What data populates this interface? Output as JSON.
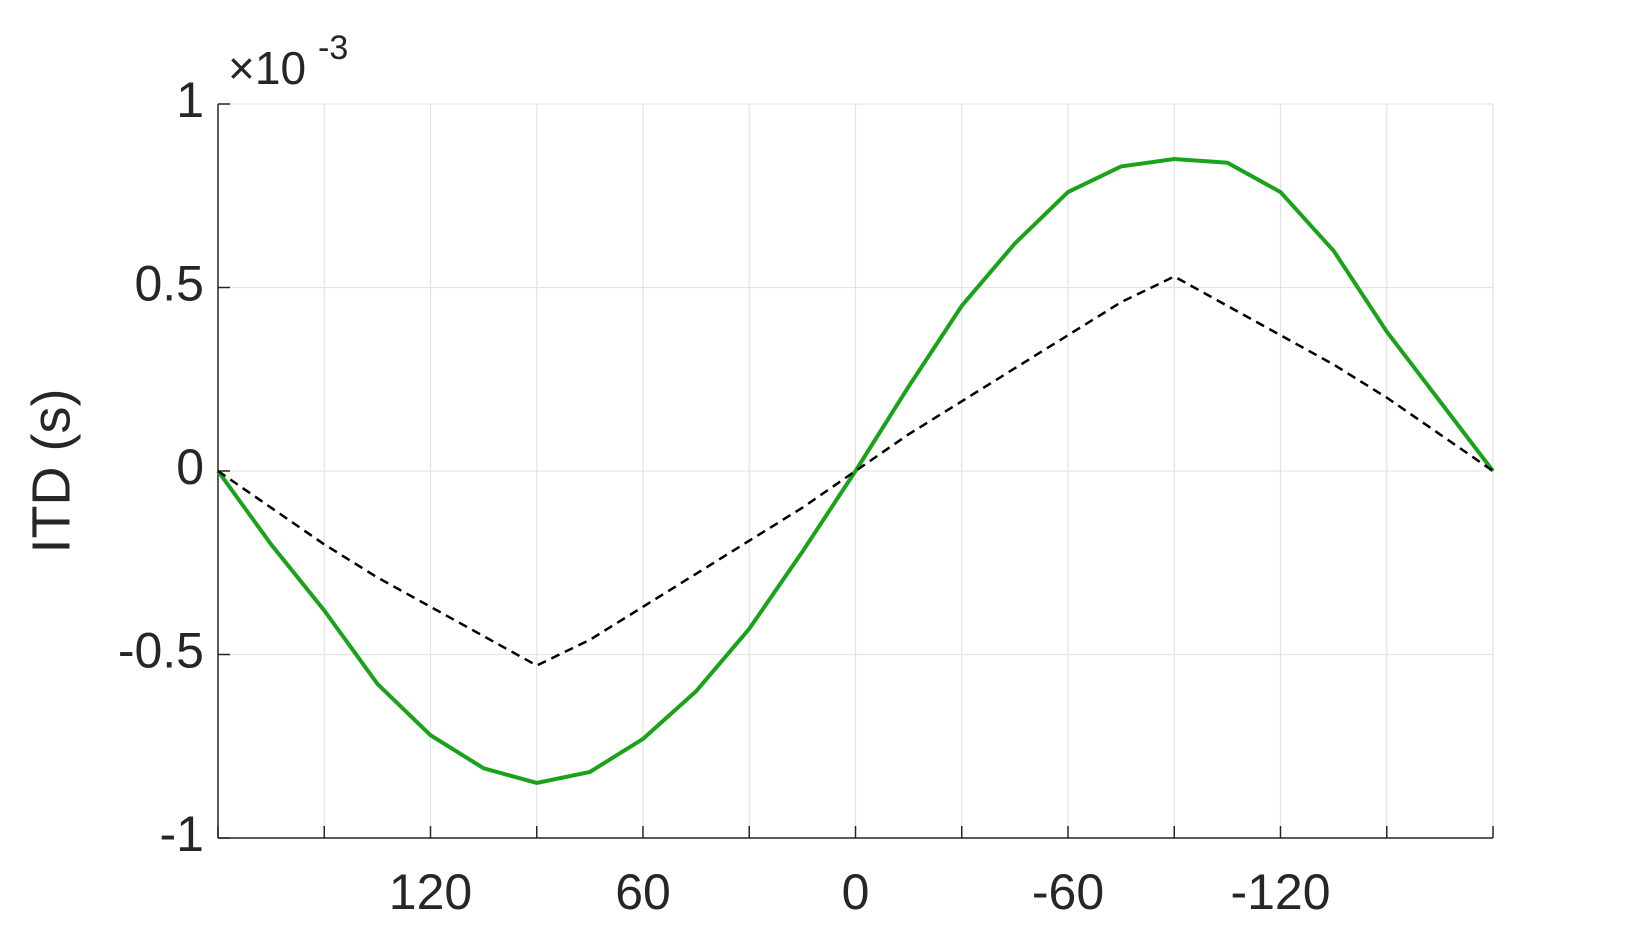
{
  "chart_data": {
    "type": "line",
    "y_label": "ITD (s)",
    "y_exponent": {
      "base": "×10",
      "power": "-3"
    },
    "x": [
      180,
      165,
      150,
      135,
      120,
      105,
      90,
      75,
      60,
      45,
      30,
      15,
      0,
      -15,
      -30,
      -45,
      -60,
      -75,
      -90,
      -105,
      -120,
      -135,
      -150,
      -165,
      -180
    ],
    "series": [
      {
        "color": "#1aa31a",
        "style": "solid",
        "values": [
          0,
          -0.0002,
          -0.00038,
          -0.00058,
          -0.00072,
          -0.00081,
          -0.00085,
          -0.00082,
          -0.00073,
          -0.0006,
          -0.00043,
          -0.00022,
          0,
          0.00023,
          0.00045,
          0.00062,
          0.00076,
          0.00083,
          0.00085,
          0.00084,
          0.00076,
          0.0006,
          0.00038,
          0.00019,
          0
        ]
      },
      {
        "color": "#000000",
        "style": "dashed",
        "values": [
          0,
          -0.0001,
          -0.0002,
          -0.00029,
          -0.00037,
          -0.00045,
          -0.00053,
          -0.00046,
          -0.00037,
          -0.00028,
          -0.00019,
          -0.0001,
          0,
          0.0001,
          0.00019,
          0.00028,
          0.00037,
          0.00046,
          0.00053,
          0.00045,
          0.00037,
          0.00029,
          0.0002,
          0.0001,
          0
        ]
      }
    ],
    "xlim": [
      180,
      -180
    ],
    "xticks": [
      120,
      60,
      0,
      -60,
      -120
    ],
    "xminorticks": [
      180,
      150,
      90,
      30,
      -30,
      -90,
      -150,
      -180
    ],
    "ylim": [
      -0.001,
      0.001
    ],
    "yticks": [
      {
        "value": -0.001,
        "label": "-1"
      },
      {
        "value": -0.0005,
        "label": "-0.5"
      },
      {
        "value": 0,
        "label": "0"
      },
      {
        "value": 0.0005,
        "label": "0.5"
      },
      {
        "value": 0.001,
        "label": "1"
      }
    ],
    "grid": true
  }
}
